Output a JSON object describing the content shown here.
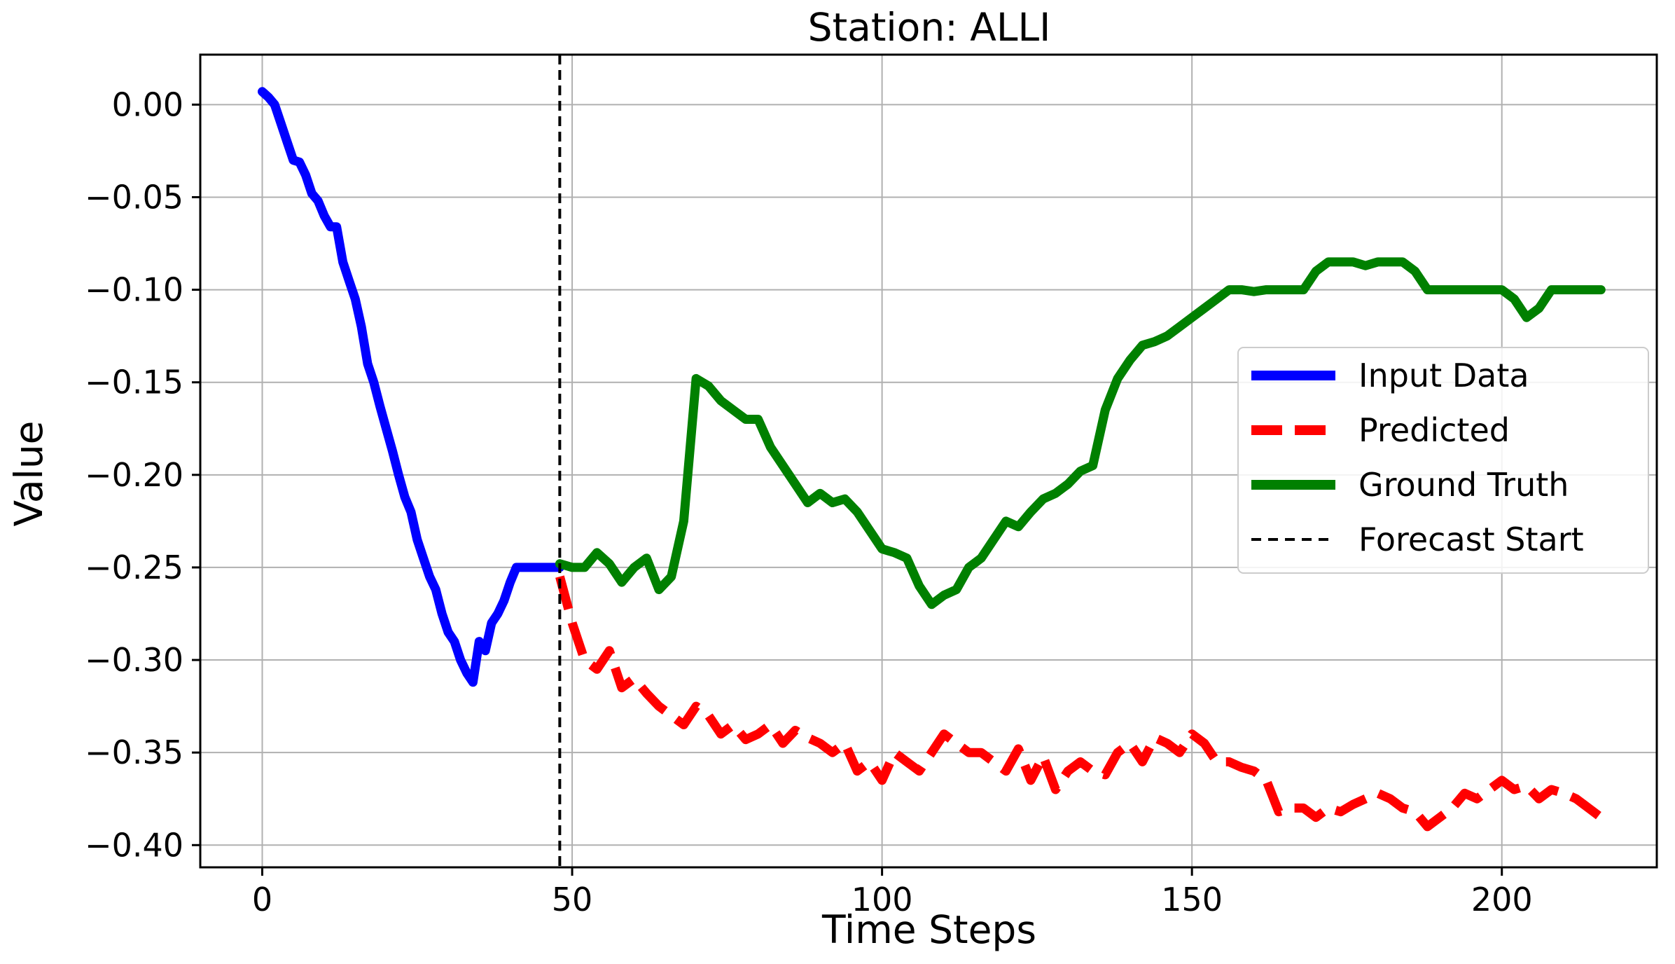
{
  "chart_data": {
    "type": "line",
    "title": "Station: ALLI",
    "xlabel": "Time Steps",
    "ylabel": "Value",
    "xlim": [
      -10,
      225
    ],
    "ylim": [
      -0.412,
      0.027
    ],
    "xticks": [
      0,
      50,
      100,
      150,
      200
    ],
    "xtick_labels": [
      "0",
      "50",
      "100",
      "150",
      "200"
    ],
    "yticks": [
      0.0,
      -0.05,
      -0.1,
      -0.15,
      -0.2,
      -0.25,
      -0.3,
      -0.35,
      -0.4
    ],
    "ytick_labels": [
      "0.00",
      "−0.05",
      "−0.10",
      "−0.15",
      "−0.20",
      "−0.25",
      "−0.30",
      "−0.35",
      "−0.40"
    ],
    "grid": true,
    "legend_position": "center-right",
    "forecast_start_x": 48,
    "series": [
      {
        "name": "Input Data",
        "color": "#0000ff",
        "style": "solid",
        "x": [
          0,
          1,
          2,
          3,
          4,
          5,
          6,
          7,
          8,
          9,
          10,
          11,
          12,
          13,
          14,
          15,
          16,
          17,
          18,
          19,
          20,
          21,
          22,
          23,
          24,
          25,
          26,
          27,
          28,
          29,
          30,
          31,
          32,
          33,
          34,
          35,
          36,
          37,
          38,
          39,
          40,
          41,
          42,
          43,
          44,
          45,
          46,
          47,
          48
        ],
        "y": [
          0.007,
          0.004,
          0.0,
          -0.01,
          -0.02,
          -0.03,
          -0.031,
          -0.038,
          -0.048,
          -0.052,
          -0.06,
          -0.066,
          -0.066,
          -0.085,
          -0.095,
          -0.105,
          -0.12,
          -0.14,
          -0.15,
          -0.163,
          -0.175,
          -0.187,
          -0.2,
          -0.212,
          -0.22,
          -0.235,
          -0.245,
          -0.255,
          -0.262,
          -0.275,
          -0.285,
          -0.29,
          -0.3,
          -0.307,
          -0.312,
          -0.29,
          -0.295,
          -0.28,
          -0.275,
          -0.268,
          -0.258,
          -0.25,
          -0.25,
          -0.25,
          -0.25,
          -0.25,
          -0.25,
          -0.25,
          -0.25
        ]
      },
      {
        "name": "Predicted",
        "color": "#ff0000",
        "style": "dashed",
        "x": [
          48,
          50,
          52,
          54,
          56,
          58,
          60,
          62,
          64,
          66,
          68,
          70,
          72,
          74,
          76,
          78,
          80,
          82,
          84,
          86,
          88,
          90,
          92,
          94,
          96,
          98,
          100,
          102,
          104,
          106,
          108,
          110,
          112,
          114,
          116,
          118,
          120,
          122,
          124,
          126,
          128,
          130,
          132,
          134,
          136,
          138,
          140,
          142,
          144,
          146,
          148,
          150,
          152,
          154,
          156,
          158,
          160,
          162,
          164,
          166,
          168,
          170,
          172,
          174,
          176,
          178,
          180,
          182,
          184,
          186,
          188,
          190,
          192,
          194,
          196,
          198,
          200,
          202,
          204,
          206,
          208,
          210,
          212,
          214,
          216
        ],
        "y": [
          -0.255,
          -0.28,
          -0.3,
          -0.305,
          -0.295,
          -0.315,
          -0.31,
          -0.318,
          -0.325,
          -0.33,
          -0.335,
          -0.325,
          -0.33,
          -0.34,
          -0.335,
          -0.343,
          -0.34,
          -0.335,
          -0.345,
          -0.338,
          -0.342,
          -0.345,
          -0.35,
          -0.345,
          -0.36,
          -0.355,
          -0.365,
          -0.35,
          -0.355,
          -0.36,
          -0.35,
          -0.34,
          -0.345,
          -0.35,
          -0.35,
          -0.355,
          -0.36,
          -0.348,
          -0.365,
          -0.352,
          -0.37,
          -0.36,
          -0.355,
          -0.36,
          -0.362,
          -0.35,
          -0.345,
          -0.355,
          -0.342,
          -0.345,
          -0.35,
          -0.34,
          -0.345,
          -0.355,
          -0.355,
          -0.358,
          -0.36,
          -0.365,
          -0.382,
          -0.38,
          -0.38,
          -0.385,
          -0.38,
          -0.382,
          -0.378,
          -0.375,
          -0.372,
          -0.375,
          -0.38,
          -0.382,
          -0.39,
          -0.385,
          -0.38,
          -0.372,
          -0.375,
          -0.37,
          -0.365,
          -0.37,
          -0.368,
          -0.375,
          -0.37,
          -0.372,
          -0.375,
          -0.38,
          -0.385
        ]
      },
      {
        "name": "Ground Truth",
        "color": "#008000",
        "style": "solid",
        "x": [
          48,
          50,
          52,
          54,
          56,
          58,
          60,
          62,
          64,
          66,
          68,
          70,
          72,
          74,
          76,
          78,
          80,
          82,
          84,
          86,
          88,
          90,
          92,
          94,
          96,
          98,
          100,
          102,
          104,
          106,
          108,
          110,
          112,
          114,
          116,
          118,
          120,
          122,
          124,
          126,
          128,
          130,
          132,
          134,
          136,
          138,
          140,
          142,
          144,
          146,
          148,
          150,
          152,
          154,
          156,
          158,
          160,
          162,
          164,
          166,
          168,
          170,
          172,
          174,
          176,
          178,
          180,
          182,
          184,
          186,
          188,
          190,
          192,
          194,
          196,
          198,
          200,
          202,
          204,
          206,
          208,
          210,
          212,
          214,
          216
        ],
        "y": [
          -0.248,
          -0.25,
          -0.25,
          -0.242,
          -0.248,
          -0.258,
          -0.25,
          -0.245,
          -0.262,
          -0.255,
          -0.225,
          -0.148,
          -0.152,
          -0.16,
          -0.165,
          -0.17,
          -0.17,
          -0.185,
          -0.195,
          -0.205,
          -0.215,
          -0.21,
          -0.215,
          -0.213,
          -0.22,
          -0.23,
          -0.24,
          -0.242,
          -0.245,
          -0.26,
          -0.27,
          -0.265,
          -0.262,
          -0.25,
          -0.245,
          -0.235,
          -0.225,
          -0.228,
          -0.22,
          -0.213,
          -0.21,
          -0.205,
          -0.198,
          -0.195,
          -0.165,
          -0.148,
          -0.138,
          -0.13,
          -0.128,
          -0.125,
          -0.12,
          -0.115,
          -0.11,
          -0.105,
          -0.1,
          -0.1,
          -0.101,
          -0.1,
          -0.1,
          -0.1,
          -0.1,
          -0.09,
          -0.085,
          -0.085,
          -0.085,
          -0.087,
          -0.085,
          -0.085,
          -0.085,
          -0.09,
          -0.1,
          -0.1,
          -0.1,
          -0.1,
          -0.1,
          -0.1,
          -0.1,
          -0.105,
          -0.115,
          -0.11,
          -0.1,
          -0.1,
          -0.1,
          -0.1,
          -0.1
        ]
      }
    ],
    "forecast_line": {
      "name": "Forecast Start",
      "color": "#000000",
      "style": "dashed"
    }
  }
}
